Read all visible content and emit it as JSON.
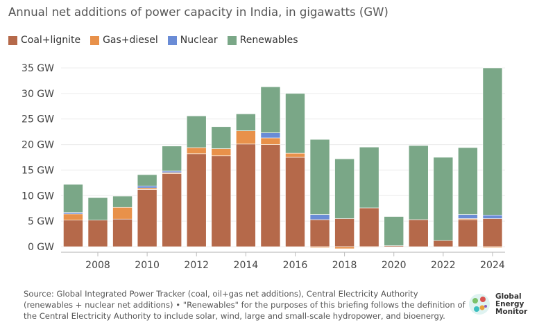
{
  "chart_data": {
    "type": "bar",
    "stacked": true,
    "title": "Annual net additions of power capacity in India, in gigawatts (GW)",
    "xlabel": "",
    "ylabel": "",
    "ylim": [
      0,
      35
    ],
    "y_ticks": [
      "0 GW",
      "5 GW",
      "10 GW",
      "15 GW",
      "20 GW",
      "25 GW",
      "30 GW",
      "35 GW"
    ],
    "x_ticks": [
      "2008",
      "2010",
      "2012",
      "2014",
      "2016",
      "2018",
      "2020",
      "2022",
      "2024"
    ],
    "grid": true,
    "legend_position": "top-left",
    "categories": [
      2007,
      2008,
      2009,
      2010,
      2011,
      2012,
      2013,
      2014,
      2015,
      2016,
      2017,
      2018,
      2019,
      2020,
      2021,
      2022,
      2023,
      2024
    ],
    "series": [
      {
        "name": "Coal+lignite",
        "color": "#b5694a",
        "values": [
          5.2,
          5.2,
          5.4,
          11.2,
          14.3,
          18.2,
          17.8,
          20.1,
          20.0,
          17.5,
          5.3,
          5.5,
          7.6,
          0.2,
          5.3,
          1.2,
          5.3,
          5.5
        ]
      },
      {
        "name": "Gas+diesel",
        "color": "#e8914a",
        "values": [
          1.2,
          0,
          2.3,
          0.3,
          0.2,
          1.2,
          1.4,
          2.6,
          1.3,
          0.8,
          -0.2,
          -0.4,
          -0.1,
          0,
          0,
          0,
          0.2,
          -0.2
        ]
      },
      {
        "name": "Nuclear",
        "color": "#6a8cd6",
        "values": [
          0.3,
          0,
          0,
          0.4,
          0.3,
          0,
          0,
          0,
          1.0,
          0,
          1.0,
          0,
          0,
          0,
          0,
          0,
          0.8,
          0.7
        ]
      },
      {
        "name": "Renewables",
        "color": "#7aa787",
        "values": [
          5.5,
          4.4,
          2.2,
          2.2,
          4.9,
          6.2,
          4.3,
          3.3,
          9.0,
          11.7,
          14.7,
          11.7,
          11.9,
          5.7,
          14.5,
          16.3,
          13.1,
          28.8
        ]
      }
    ]
  },
  "source": "Source: Global Integrated Power Tracker (coal, oil+gas net additions), Central Electricity Authority (renewables + nuclear net additions) • \"Renewables\" for the purposes of this briefing follows the definition of the Central Electricity Authority to include solar, wind, large and small-scale hydropower, and bioenergy.",
  "logo": {
    "line1": "Global",
    "line2": "Energy",
    "line3": "Monitor"
  }
}
